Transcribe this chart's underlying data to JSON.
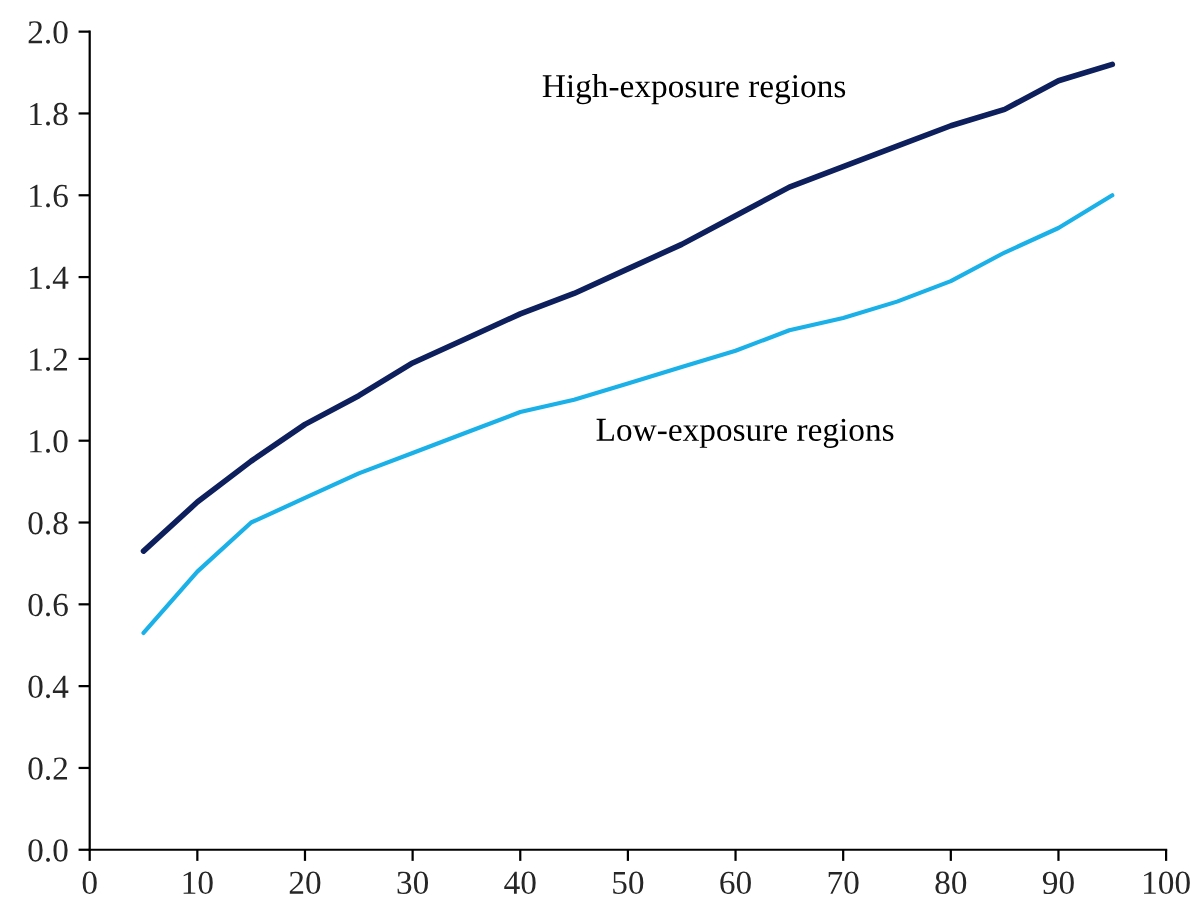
{
  "chart_data": {
    "type": "line",
    "x": [
      5,
      10,
      15,
      20,
      25,
      30,
      35,
      40,
      45,
      50,
      55,
      60,
      65,
      70,
      75,
      80,
      85,
      90,
      95
    ],
    "series": [
      {
        "name": "High-exposure regions",
        "color": "#0d1f5c",
        "values": [
          0.73,
          0.85,
          0.95,
          1.04,
          1.11,
          1.19,
          1.25,
          1.31,
          1.36,
          1.42,
          1.48,
          1.55,
          1.62,
          1.67,
          1.72,
          1.77,
          1.81,
          1.88,
          1.92
        ]
      },
      {
        "name": "Low-exposure regions",
        "color": "#1ab0e8",
        "values": [
          0.53,
          0.68,
          0.8,
          0.86,
          0.92,
          0.97,
          1.02,
          1.07,
          1.1,
          1.14,
          1.18,
          1.22,
          1.27,
          1.3,
          1.34,
          1.39,
          1.46,
          1.52,
          1.6
        ]
      }
    ],
    "xlim": [
      0,
      100
    ],
    "xticks": [
      0,
      10,
      20,
      30,
      40,
      50,
      60,
      70,
      80,
      90,
      100
    ],
    "ylim": [
      0,
      2.0
    ],
    "yticks": [
      {
        "value": 0,
        "label": "0.0"
      },
      {
        "value": 0.2,
        "label": "0.2"
      },
      {
        "value": 0.4,
        "label": "0.4"
      },
      {
        "value": 0.6,
        "label": "0.6"
      },
      {
        "value": 0.8,
        "label": "0.8"
      },
      {
        "value": 1.0,
        "label": "1.0"
      },
      {
        "value": 1.2,
        "label": "1.2"
      },
      {
        "value": 1.4,
        "label": "1.4"
      },
      {
        "value": 1.6,
        "label": "1.6"
      },
      {
        "value": 1.8,
        "label": "1.8"
      },
      {
        "value": 2.0,
        "label": "2.0"
      }
    ],
    "grid": false,
    "legend": false
  }
}
